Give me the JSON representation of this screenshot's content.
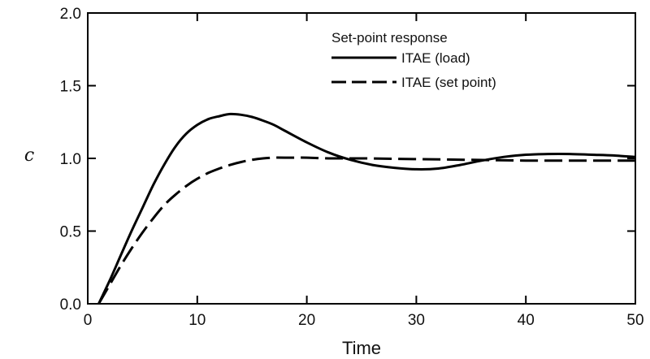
{
  "chart_data": {
    "type": "line",
    "title": "",
    "xlabel": "Time",
    "ylabel": "c",
    "xlim": [
      0,
      50
    ],
    "ylim": [
      0,
      2.0
    ],
    "xticks": [
      0,
      10,
      20,
      30,
      40,
      50
    ],
    "yticks": [
      0,
      0.5,
      1.0,
      1.5,
      2.0
    ],
    "xtick_labels": [
      "0",
      "10",
      "20",
      "30",
      "40",
      "50"
    ],
    "ytick_labels": [
      "0.0",
      "0.5",
      "1.0",
      "1.5",
      "2.0"
    ],
    "grid": false,
    "legend": {
      "title": "Set-point response",
      "position": "top-right"
    },
    "series": [
      {
        "name": "ITAE (load)",
        "style": "solid",
        "color": "#000000",
        "x": [
          1,
          2,
          3,
          4,
          5,
          6,
          7,
          8,
          9,
          10,
          11,
          12,
          13,
          14,
          15,
          16,
          17,
          18,
          20,
          22,
          24,
          26,
          28,
          30,
          32,
          34,
          36,
          38,
          40,
          42,
          44,
          46,
          48,
          50
        ],
        "y": [
          0.0,
          0.16,
          0.33,
          0.5,
          0.66,
          0.82,
          0.96,
          1.08,
          1.17,
          1.23,
          1.27,
          1.29,
          1.305,
          1.3,
          1.285,
          1.26,
          1.23,
          1.19,
          1.11,
          1.04,
          0.99,
          0.955,
          0.935,
          0.925,
          0.93,
          0.955,
          0.985,
          1.01,
          1.025,
          1.03,
          1.03,
          1.025,
          1.02,
          1.01
        ]
      },
      {
        "name": "ITAE (set point)",
        "style": "dashed",
        "color": "#000000",
        "x": [
          1,
          2,
          3,
          4,
          5,
          6,
          7,
          8,
          9,
          10,
          11,
          12,
          13,
          14,
          15,
          16,
          17,
          18,
          20,
          22,
          25,
          30,
          35,
          40,
          45,
          50
        ],
        "y": [
          0.0,
          0.13,
          0.26,
          0.38,
          0.49,
          0.59,
          0.68,
          0.75,
          0.81,
          0.86,
          0.9,
          0.93,
          0.955,
          0.975,
          0.99,
          1.0,
          1.005,
          1.005,
          1.005,
          1.0,
          1.0,
          0.995,
          0.99,
          0.985,
          0.985,
          0.985
        ]
      }
    ]
  }
}
